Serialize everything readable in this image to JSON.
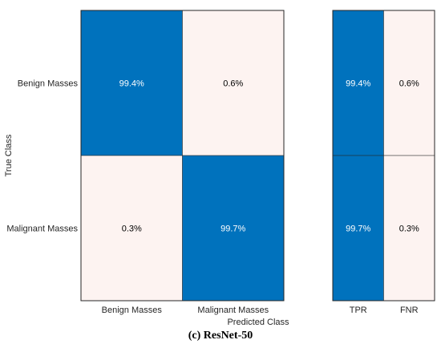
{
  "chart_data": {
    "type": "heatmap",
    "row_labels": [
      "Benign Masses",
      "Malignant Masses"
    ],
    "col_labels": [
      "Benign Masses",
      "Malignant Masses"
    ],
    "values": [
      [
        99.4,
        0.6
      ],
      [
        0.3,
        99.7
      ]
    ],
    "value_texts": [
      [
        "99.4%",
        "0.6%"
      ],
      [
        "0.3%",
        "99.7%"
      ]
    ],
    "ylabel": "True Class",
    "xlabel": "Predicted Class",
    "summary": {
      "col_labels": [
        "TPR",
        "FNR"
      ],
      "values": [
        [
          99.4,
          0.6
        ],
        [
          99.7,
          0.3
        ]
      ],
      "value_texts": [
        [
          "99.4%",
          "0.6%"
        ],
        [
          "99.7%",
          "0.3%"
        ]
      ]
    },
    "colors": {
      "high": "#0072bd",
      "low": "#fdf3f1",
      "text_on_high": "#ffffff",
      "text_on_low": "#000000",
      "border": "#262626"
    }
  },
  "caption": "(c) ResNet-50"
}
